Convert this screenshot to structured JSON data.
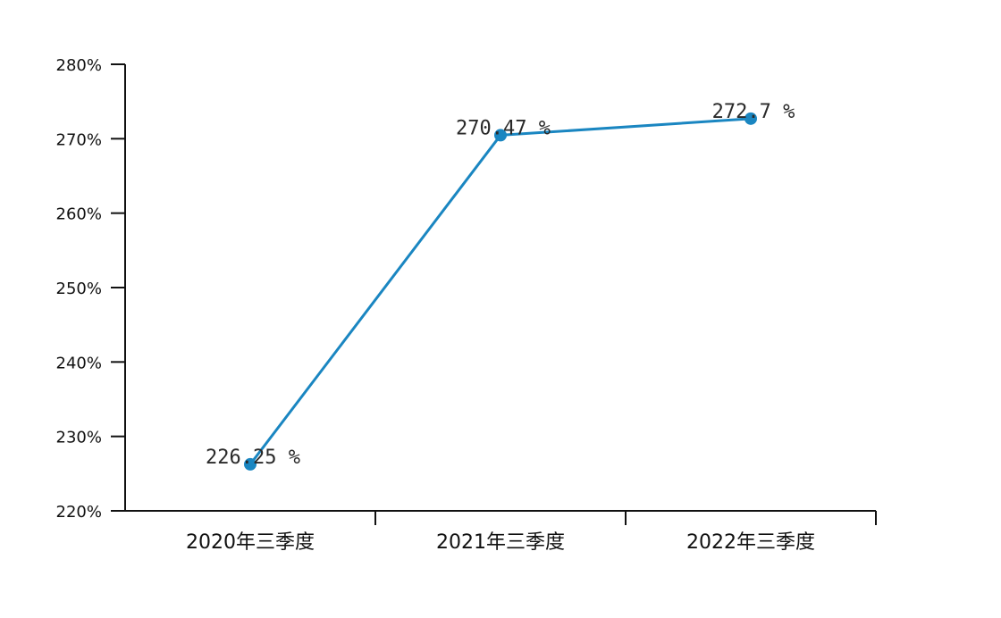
{
  "colors": {
    "series": "#1a86c1",
    "axis": "#111111",
    "text": "#111111"
  },
  "chart_data": {
    "type": "line",
    "title": "",
    "xlabel": "",
    "ylabel": "",
    "categories": [
      "2020年三季度",
      "2021年三季度",
      "2022年三季度"
    ],
    "values": [
      226.25,
      270.47,
      272.7
    ],
    "data_labels": [
      "226.25 %",
      "270.47 %",
      "272.7 %"
    ],
    "y_ticks": [
      220,
      230,
      240,
      250,
      260,
      270,
      280
    ],
    "y_tick_labels": [
      "220%",
      "230%",
      "240%",
      "250%",
      "260%",
      "270%",
      "280%"
    ],
    "ylim": [
      220,
      280
    ],
    "grid": false,
    "legend": "none"
  }
}
